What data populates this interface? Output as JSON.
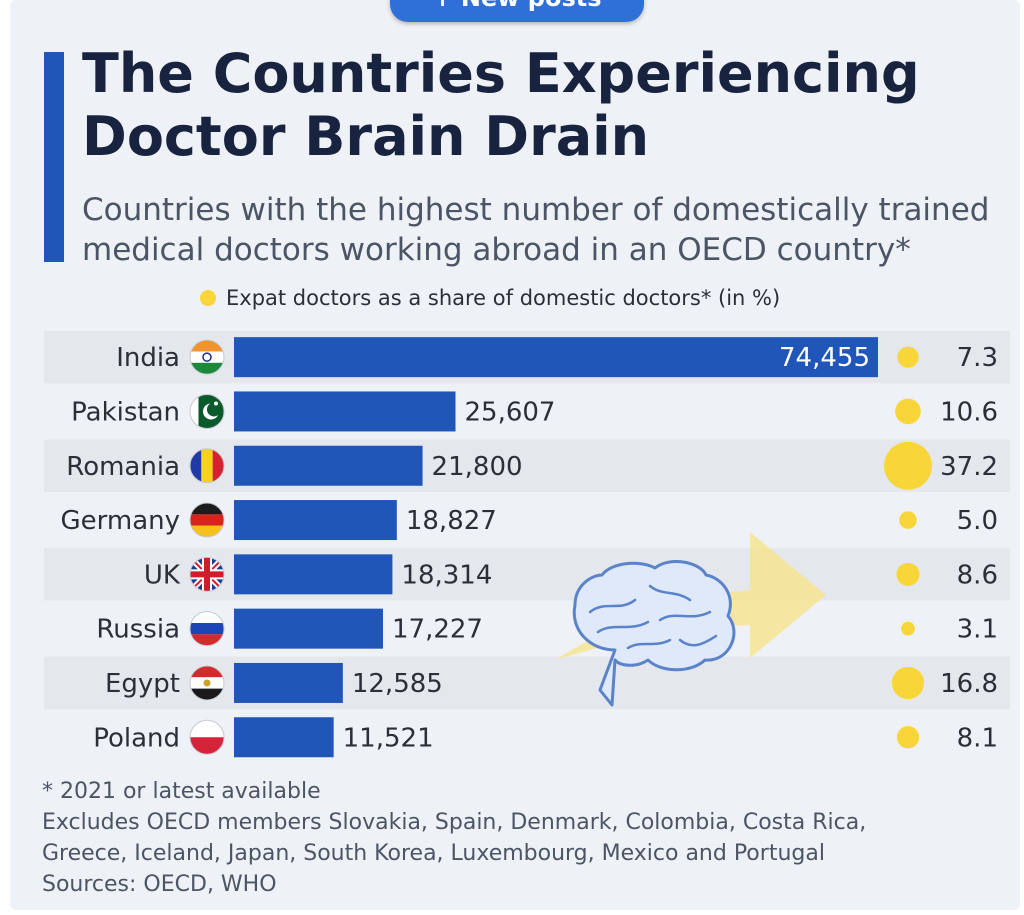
{
  "banner": {
    "label": "+ New posts"
  },
  "header": {
    "title_line1": "The Countries Experiencing",
    "title_line2": "Doctor Brain Drain",
    "subtitle_line1": "Countries with the highest number of domestically trained",
    "subtitle_line2": "medical doctors working abroad in an OECD country*"
  },
  "colors": {
    "bar": "#1f56b8",
    "bubble": "#f8d63a",
    "row_band": "#e4e7ec",
    "text": "#2b2f38",
    "label_on_bar": "#ffffff"
  },
  "chart_data": {
    "type": "bar",
    "orientation": "horizontal",
    "categories": [
      "India",
      "Pakistan",
      "Romania",
      "Germany",
      "UK",
      "Russia",
      "Egypt",
      "Poland"
    ],
    "values": [
      74455,
      25607,
      21800,
      18827,
      18314,
      17227,
      12585,
      11521
    ],
    "value_labels": [
      "74,455",
      "25,607",
      "21,800",
      "18,827",
      "18,314",
      "17,227",
      "12,585",
      "11,521"
    ],
    "xlim": [
      0,
      74455
    ],
    "grid": false,
    "flag_icons": [
      "india-flag-icon",
      "pakistan-flag-icon",
      "romania-flag-icon",
      "germany-flag-icon",
      "uk-flag-icon",
      "russia-flag-icon",
      "egypt-flag-icon",
      "poland-flag-icon"
    ],
    "share_series": {
      "name": "Expat doctors as a share of domestic doctors* (in %)",
      "values": [
        7.3,
        10.6,
        37.2,
        5.0,
        8.6,
        3.1,
        16.8,
        8.1
      ],
      "labels": [
        "7.3",
        "10.6",
        "37.2",
        "5.0",
        "8.6",
        "3.1",
        "16.8",
        "8.1"
      ]
    },
    "legend_placement": "top"
  },
  "decoration": {
    "icon": "brain-with-arrow-icon"
  },
  "footnotes": {
    "line1": "* 2021 or latest available",
    "line2": "Excludes OECD members Slovakia, Spain, Denmark, Colombia, Costa Rica,",
    "line3": "Greece, Iceland, Japan, South Korea, Luxembourg, Mexico and Portugal",
    "line4": "Sources: OECD, WHO"
  }
}
